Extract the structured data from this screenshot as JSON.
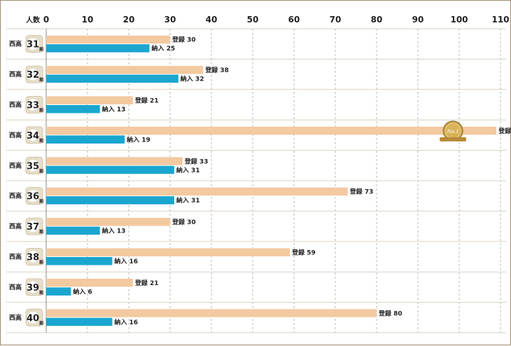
{
  "chart_data": {
    "type": "bar",
    "orientation": "horizontal",
    "y_axis_title": "人数",
    "xlim": [
      0,
      110
    ],
    "x_ticks": [
      0,
      10,
      20,
      30,
      40,
      50,
      60,
      70,
      80,
      90,
      100,
      110
    ],
    "grid": true,
    "category_prefix": "西高",
    "category_suffix": "期",
    "categories": [
      "31",
      "32",
      "33",
      "34",
      "35",
      "36",
      "37",
      "38",
      "39",
      "40"
    ],
    "series": [
      {
        "name": "登録",
        "color": "#f3c9a0",
        "values": [
          30,
          38,
          21,
          109,
          33,
          73,
          30,
          59,
          21,
          80
        ]
      },
      {
        "name": "納入",
        "color": "#1aa6cf",
        "values": [
          25,
          32,
          13,
          19,
          31,
          31,
          13,
          16,
          6,
          16
        ]
      }
    ],
    "medal": {
      "category": "34",
      "series": "登録",
      "text": "No.1",
      "icon": "gold-medal-icon"
    }
  }
}
